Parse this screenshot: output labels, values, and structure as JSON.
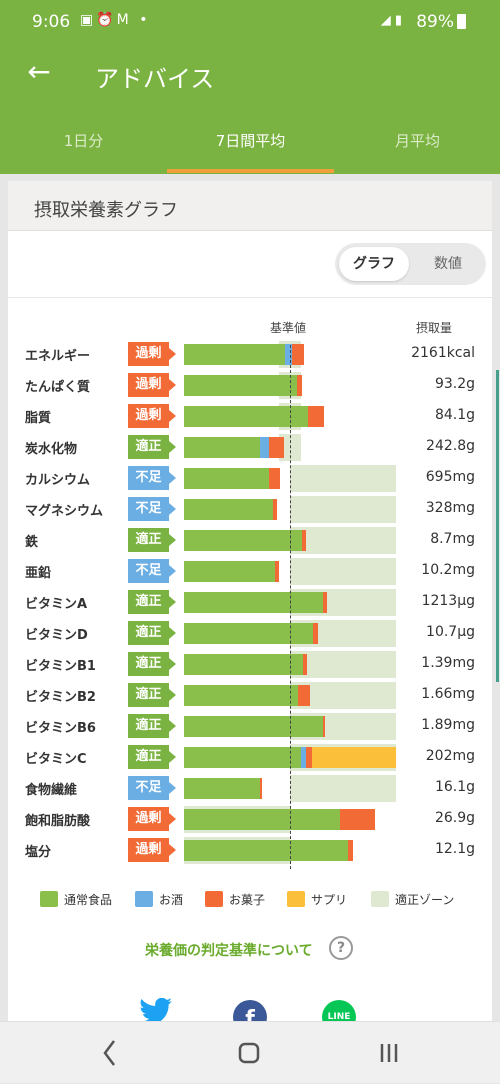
{
  "status_bar": {
    "time": "9:06",
    "battery": "89%"
  },
  "header": {
    "title": "アドバイス"
  },
  "tabs": [
    {
      "label": "1日分"
    },
    {
      "label": "7日間平均"
    },
    {
      "label": "月平均"
    }
  ],
  "card": {
    "title": "摂取栄養素グラフ",
    "toggle": {
      "graph": "グラフ",
      "numeric": "数値"
    },
    "column_headers": {
      "reference": "基準値",
      "intake": "摂取量"
    }
  },
  "colors": {
    "normal_food": "#8bbf4c",
    "alcohol": "#6aaee3",
    "sweets": "#f26a36",
    "supplement": "#fbbf3a",
    "zone": "#dfe9d2",
    "over": "#f26a36",
    "ok": "#7bb342",
    "low": "#6aaee3"
  },
  "chart_data": {
    "type": "bar",
    "stacked": true,
    "orientation": "horizontal",
    "reference_label": "基準値",
    "value_label": "摂取量",
    "rows": [
      {
        "name": "エネルギー",
        "status": "過剰",
        "value_text": "2161kcal",
        "segments": {
          "normal_food": 0.95,
          "alcohol": 0.07,
          "sweets": 0.11,
          "supplement": 0
        },
        "zone": [
          0.9,
          1.1
        ]
      },
      {
        "name": "たんぱく質",
        "status": "過剰",
        "value_text": "93.2g",
        "segments": {
          "normal_food": 1.07,
          "alcohol": 0,
          "sweets": 0.04,
          "supplement": 0
        },
        "zone": [
          0.9,
          1.1
        ]
      },
      {
        "name": "脂質",
        "status": "過剰",
        "value_text": "84.1g",
        "segments": {
          "normal_food": 1.17,
          "alcohol": 0,
          "sweets": 0.15,
          "supplement": 0
        },
        "zone": [
          0.9,
          1.1
        ]
      },
      {
        "name": "炭水化物",
        "status": "適正",
        "value_text": "242.8g",
        "segments": {
          "normal_food": 0.72,
          "alcohol": 0.08,
          "sweets": 0.14,
          "supplement": 0
        },
        "zone": [
          0.9,
          1.1
        ]
      },
      {
        "name": "カルシウム",
        "status": "不足",
        "value_text": "695mg",
        "segments": {
          "normal_food": 0.8,
          "alcohol": 0,
          "sweets": 0.11,
          "supplement": 0
        },
        "zone": [
          1.0,
          2.0
        ]
      },
      {
        "name": "マグネシウム",
        "status": "不足",
        "value_text": "328mg",
        "segments": {
          "normal_food": 0.84,
          "alcohol": 0,
          "sweets": 0.04,
          "supplement": 0
        },
        "zone": [
          1.0,
          2.0
        ]
      },
      {
        "name": "鉄",
        "status": "適正",
        "value_text": "8.7mg",
        "segments": {
          "normal_food": 1.11,
          "alcohol": 0,
          "sweets": 0.04,
          "supplement": 0
        },
        "zone": [
          1.0,
          2.0
        ]
      },
      {
        "name": "亜鉛",
        "status": "不足",
        "value_text": "10.2mg",
        "segments": {
          "normal_food": 0.86,
          "alcohol": 0,
          "sweets": 0.04,
          "supplement": 0
        },
        "zone": [
          1.0,
          2.0
        ]
      },
      {
        "name": "ビタミンA",
        "status": "適正",
        "value_text": "1213µg",
        "segments": {
          "normal_food": 1.31,
          "alcohol": 0,
          "sweets": 0.04,
          "supplement": 0
        },
        "zone": [
          1.0,
          2.0
        ]
      },
      {
        "name": "ビタミンD",
        "status": "適正",
        "value_text": "10.7µg",
        "segments": {
          "normal_food": 1.22,
          "alcohol": 0,
          "sweets": 0.04,
          "supplement": 0
        },
        "zone": [
          1.0,
          2.0
        ]
      },
      {
        "name": "ビタミンB1",
        "status": "適正",
        "value_text": "1.39mg",
        "segments": {
          "normal_food": 1.12,
          "alcohol": 0,
          "sweets": 0.04,
          "supplement": 0
        },
        "zone": [
          1.0,
          2.0
        ]
      },
      {
        "name": "ビタミンB2",
        "status": "適正",
        "value_text": "1.66mg",
        "segments": {
          "normal_food": 1.08,
          "alcohol": 0,
          "sweets": 0.11,
          "supplement": 0
        },
        "zone": [
          1.0,
          2.0
        ]
      },
      {
        "name": "ビタミンB6",
        "status": "適正",
        "value_text": "1.89mg",
        "segments": {
          "normal_food": 1.31,
          "alcohol": 0,
          "sweets": 0.02,
          "supplement": 0
        },
        "zone": [
          1.0,
          2.0
        ]
      },
      {
        "name": "ビタミンC",
        "status": "適正",
        "value_text": "202mg",
        "segments": {
          "normal_food": 1.1,
          "alcohol": 0.05,
          "sweets": 0.06,
          "supplement": 0.79
        },
        "zone": [
          1.0,
          2.0
        ]
      },
      {
        "name": "食物繊維",
        "status": "不足",
        "value_text": "16.1g",
        "segments": {
          "normal_food": 0.72,
          "alcohol": 0,
          "sweets": 0.02,
          "supplement": 0
        },
        "zone": [
          1.0,
          2.0
        ]
      },
      {
        "name": "飽和脂肪酸",
        "status": "過剰",
        "value_text": "26.9g",
        "segments": {
          "normal_food": 1.47,
          "alcohol": 0,
          "sweets": 0.33,
          "supplement": 0
        },
        "zone": [
          0.0,
          1.0
        ]
      },
      {
        "name": "塩分",
        "status": "過剰",
        "value_text": "12.1g",
        "segments": {
          "normal_food": 1.55,
          "alcohol": 0,
          "sweets": 0.04,
          "supplement": 0
        },
        "zone": [
          0.0,
          1.0
        ]
      }
    ],
    "legend": [
      {
        "key": "normal_food",
        "label": "通常食品"
      },
      {
        "key": "alcohol",
        "label": "お酒"
      },
      {
        "key": "sweets",
        "label": "お菓子"
      },
      {
        "key": "supplement",
        "label": "サプリ"
      },
      {
        "key": "zone",
        "label": "適正ゾーン"
      }
    ]
  },
  "footer": {
    "criteria_link": "栄養価の判定基準について",
    "help": "?"
  }
}
